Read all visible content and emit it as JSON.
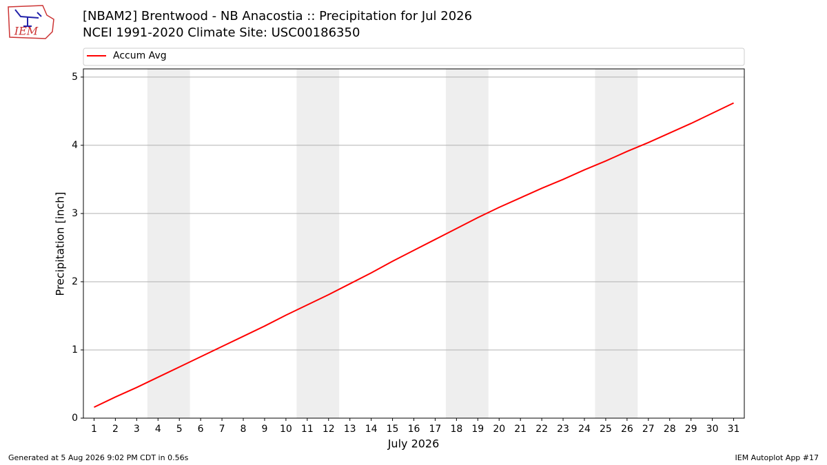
{
  "chart_data": {
    "type": "line",
    "title": "[NBAM2] Brentwood - NB Anacostia :: Precipitation for Jul 2026",
    "subtitle": "NCEI 1991-2020 Climate Site: USC00186350",
    "logo_text": "IEM",
    "x_label": "July 2026",
    "y_label": "Precipitation [inch]",
    "x": [
      1,
      2,
      3,
      4,
      5,
      6,
      7,
      8,
      9,
      10,
      11,
      12,
      13,
      14,
      15,
      16,
      17,
      18,
      19,
      20,
      21,
      22,
      23,
      24,
      25,
      26,
      27,
      28,
      29,
      30,
      31
    ],
    "series": [
      {
        "name": "Accum Avg",
        "color": "#ff0000",
        "values": [
          0.16,
          0.31,
          0.45,
          0.6,
          0.75,
          0.9,
          1.05,
          1.2,
          1.35,
          1.51,
          1.66,
          1.81,
          1.97,
          2.13,
          2.3,
          2.46,
          2.62,
          2.78,
          2.94,
          3.09,
          3.23,
          3.37,
          3.5,
          3.64,
          3.77,
          3.91,
          4.04,
          4.18,
          4.32,
          4.47,
          4.62
        ]
      }
    ],
    "xlim": [
      0.5,
      31.5
    ],
    "xticks": [
      1,
      2,
      3,
      4,
      5,
      6,
      7,
      8,
      9,
      10,
      11,
      12,
      13,
      14,
      15,
      16,
      17,
      18,
      19,
      20,
      21,
      22,
      23,
      24,
      25,
      26,
      27,
      28,
      29,
      30,
      31
    ],
    "ylim": [
      0,
      5.12
    ],
    "yticks": [
      0,
      1,
      2,
      3,
      4,
      5
    ],
    "grid": true,
    "legend": "top",
    "shaded_spans": [
      [
        3.5,
        5.5
      ],
      [
        10.5,
        12.5
      ],
      [
        17.5,
        19.5
      ],
      [
        24.5,
        26.5
      ]
    ],
    "shade_color": "#eeeeee",
    "footer_left": "Generated at 5 Aug 2026 9:02 PM CDT in 0.56s",
    "footer_right": "IEM Autoplot App #17"
  }
}
